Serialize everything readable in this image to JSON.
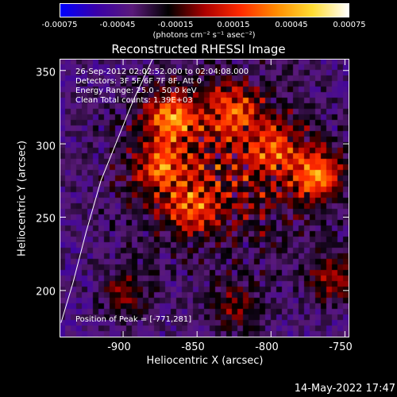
{
  "colorbar": {
    "ticks": [
      "-0.00075",
      "-0.00045",
      "-0.00015",
      "0.00015",
      "0.00045",
      "0.00075"
    ],
    "unit_label": "(photons cm⁻² s⁻¹ asec⁻²)",
    "range": [
      -0.00075,
      0.00075
    ],
    "colormap": [
      "#0000ff",
      "#3a00a8",
      "#5a1a7a",
      "#000000",
      "#aa0000",
      "#ff2a00",
      "#ff8c00",
      "#ffdd33",
      "#ffffff"
    ]
  },
  "chart_data": {
    "type": "heatmap",
    "title": "Reconstructed RHESSI Image",
    "xlabel": "Heliocentric X (arcsec)",
    "ylabel": "Heliocentric Y (arcsec)",
    "xlim": [
      -943,
      -747
    ],
    "ylim": [
      168,
      358
    ],
    "xticks": [
      "-900",
      "-850",
      "-800",
      "-750"
    ],
    "yticks": [
      "200",
      "250",
      "300",
      "350"
    ],
    "grid": false,
    "limb_curve": [
      [
        -942,
        178
      ],
      [
        -934,
        205
      ],
      [
        -925,
        240
      ],
      [
        -915,
        275
      ],
      [
        -905,
        300
      ],
      [
        -893,
        330
      ],
      [
        -880,
        358
      ]
    ],
    "peak": [
      -771,
      281
    ],
    "bright_sources": [
      {
        "x": -771,
        "y": 281,
        "intensity": 1.0
      },
      {
        "x": -869,
        "y": 320,
        "intensity": 0.95
      },
      {
        "x": -828,
        "y": 325,
        "intensity": 0.7
      },
      {
        "x": -876,
        "y": 285,
        "intensity": 0.7
      },
      {
        "x": -855,
        "y": 258,
        "intensity": 0.6
      },
      {
        "x": -760,
        "y": 210,
        "intensity": 0.6
      },
      {
        "x": -900,
        "y": 200,
        "intensity": 0.5
      },
      {
        "x": -825,
        "y": 190,
        "intensity": 0.5
      },
      {
        "x": -800,
        "y": 300,
        "intensity": 0.65
      }
    ]
  },
  "annotations": {
    "time_range": "26-Sep-2012 02:02:52.000 to 02:04:08.000",
    "detectors": "Detectors: 3F 5F 6F 7F 8F, Att 0",
    "energy": "Energy Range: 25.0 - 50.0 keV",
    "algorithm": "Clean     Total counts: 1.39E+03",
    "peak_label": "Position of Peak = [-771,281]"
  },
  "datestamp": "14-May-2022 17:47"
}
